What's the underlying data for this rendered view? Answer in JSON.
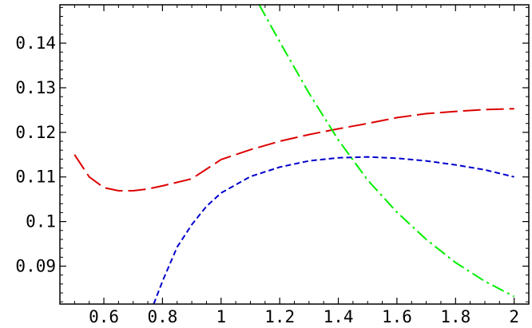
{
  "chart_data": {
    "type": "line",
    "title": "",
    "xlabel": "",
    "ylabel": "",
    "xlim": [
      0.45,
      2.05
    ],
    "ylim": [
      0.0815,
      0.1486
    ],
    "grid": false,
    "x_ticks": [
      0.6,
      0.8,
      1.0,
      1.2,
      1.4,
      1.6,
      1.8,
      2.0
    ],
    "x_tick_labels": [
      "0.6",
      "0.8",
      "1",
      "1.2",
      "1.4",
      "1.6",
      "1.8",
      "2"
    ],
    "y_ticks": [
      0.09,
      0.1,
      0.11,
      0.12,
      0.13,
      0.14
    ],
    "y_tick_labels": [
      "0.09",
      "0.1",
      "0.11",
      "0.12",
      "0.13",
      "0.14"
    ],
    "series": [
      {
        "color": "#dd0000",
        "dash": "long-dash",
        "x": [
          0.5,
          0.55,
          0.6,
          0.65,
          0.7,
          0.75,
          0.8,
          0.9,
          1.0,
          1.1,
          1.2,
          1.3,
          1.4,
          1.5,
          1.6,
          1.7,
          1.8,
          1.9,
          2.0
        ],
        "y": [
          0.115,
          0.11,
          0.1076,
          0.1069,
          0.1069,
          0.1073,
          0.108,
          0.1096,
          0.1139,
          0.1161,
          0.118,
          0.1195,
          0.1208,
          0.122,
          0.1233,
          0.1242,
          0.1247,
          0.1251,
          0.1253
        ]
      },
      {
        "color": "#0000cc",
        "dash": "short-dash",
        "x": [
          0.77,
          0.8,
          0.85,
          0.9,
          0.95,
          1.0,
          1.1,
          1.2,
          1.3,
          1.4,
          1.5,
          1.6,
          1.7,
          1.8,
          1.9,
          2.0
        ],
        "y": [
          0.0815,
          0.0866,
          0.0943,
          0.0993,
          0.1034,
          0.1064,
          0.1101,
          0.1122,
          0.1136,
          0.1143,
          0.1145,
          0.1142,
          0.1136,
          0.1127,
          0.1116,
          0.11
        ]
      },
      {
        "color": "#00ee00",
        "dash": "dash-dot",
        "x": [
          1.13,
          1.2,
          1.3,
          1.4,
          1.5,
          1.6,
          1.7,
          1.8,
          1.9,
          2.0
        ],
        "y": [
          0.1486,
          0.1403,
          0.1288,
          0.1183,
          0.1093,
          0.1021,
          0.096,
          0.0908,
          0.0866,
          0.0832
        ]
      }
    ]
  }
}
